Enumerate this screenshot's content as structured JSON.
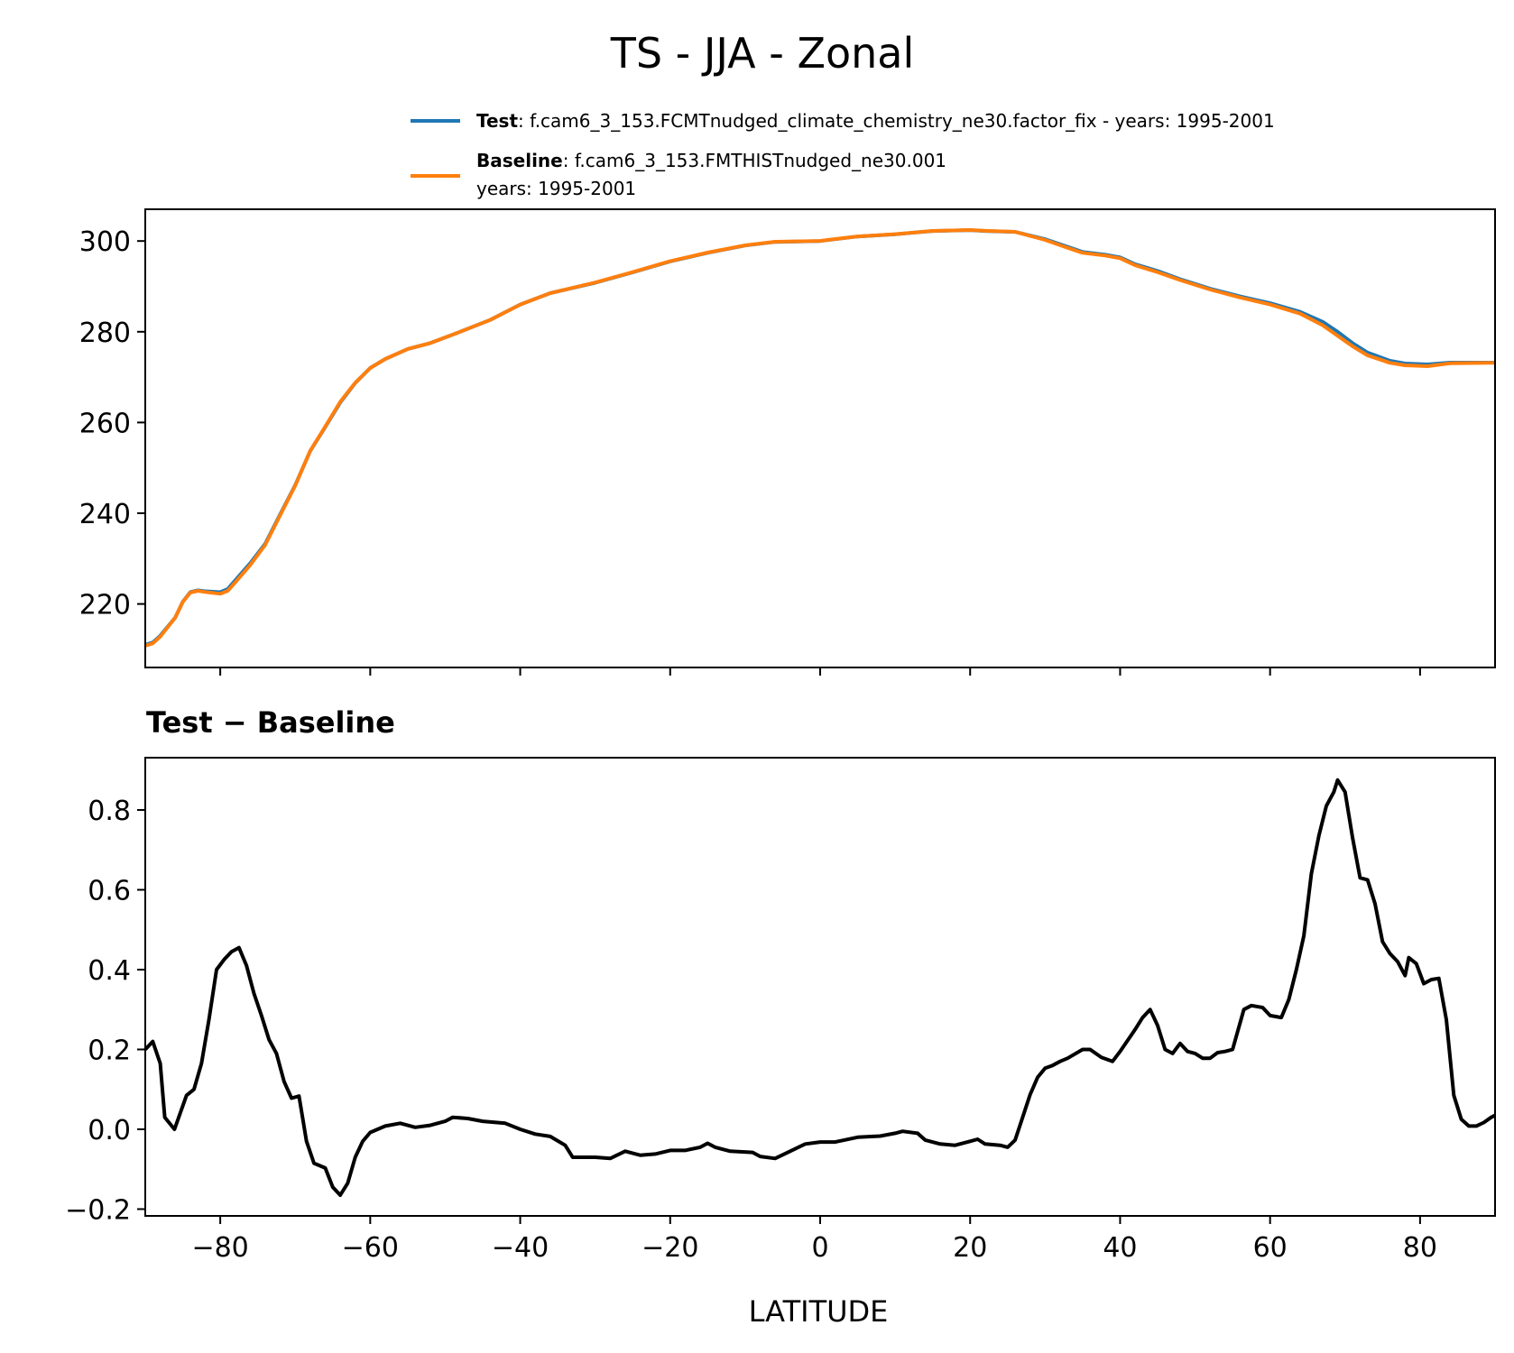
{
  "chart_data": [
    {
      "type": "line",
      "title": "TS - JJA - Zonal",
      "xlabel": "",
      "ylabel": "",
      "xlim": [
        -90,
        90
      ],
      "ylim": [
        206,
        307
      ],
      "yticks": [
        220,
        240,
        260,
        280,
        300
      ],
      "xticks": [
        -80,
        -60,
        -40,
        -20,
        0,
        20,
        40,
        60,
        80
      ],
      "grid": false,
      "legend": {
        "placement": "top-right, above axes",
        "entries": [
          {
            "label_bold": "Test",
            "label_rest": ": f.cam6_3_153.FCMTnudged_climate_chemistry_ne30.factor_fix - years: 1995-2001",
            "color": "#1f77b4"
          },
          {
            "label_bold": "Baseline",
            "label_rest": ": f.cam6_3_153.FMTHISTnudged_ne30.001",
            "label_line2": "years: 1995-2001",
            "color": "#ff7f0e"
          }
        ]
      },
      "x": [
        -90,
        -89,
        -88,
        -86,
        -85,
        -84,
        -83,
        -82,
        -80,
        -79,
        -78,
        -76,
        -74,
        -72,
        -70,
        -68,
        -66,
        -64,
        -62,
        -60,
        -58,
        -55,
        -52,
        -48,
        -44,
        -40,
        -36,
        -30,
        -25,
        -20,
        -15,
        -10,
        -6,
        0,
        2,
        5,
        10,
        15,
        20,
        22,
        26,
        30,
        33,
        35,
        38,
        40,
        42,
        45,
        48,
        52,
        56,
        60,
        64,
        67,
        69,
        71,
        73,
        76,
        78,
        81,
        84,
        90
      ],
      "series": [
        {
          "name": "Test",
          "color": "#1f77b4",
          "values": [
            211.0,
            211.5,
            213,
            217,
            220.5,
            222.6,
            223,
            222.8,
            222.6,
            223.3,
            225.2,
            229,
            233.3,
            239.8,
            246.2,
            253.7,
            259,
            264.4,
            268.7,
            272,
            274,
            276.2,
            277.5,
            280,
            282.6,
            286,
            288.5,
            290.8,
            293.1,
            295.5,
            297.4,
            299,
            299.8,
            300,
            300.4,
            301,
            301.5,
            302.2,
            302.4,
            302.2,
            302,
            300.4,
            298.7,
            297.6,
            297,
            296.4,
            294.9,
            293.4,
            291.6,
            289.5,
            287.8,
            286.3,
            284.4,
            282.2,
            280,
            277.5,
            275.4,
            273.6,
            273,
            272.8,
            273.2,
            273.2
          ]
        },
        {
          "name": "Baseline",
          "color": "#ff7f0e",
          "values": [
            210.8,
            211.3,
            212.8,
            217,
            220.45,
            222.5,
            222.9,
            222.65,
            222.25,
            222.9,
            224.75,
            228.6,
            233.05,
            239.6,
            246.1,
            253.75,
            259.1,
            264.55,
            268.75,
            272,
            274,
            276.2,
            277.5,
            280,
            282.6,
            286,
            288.5,
            290.85,
            293.15,
            295.55,
            297.45,
            299.05,
            299.85,
            300.03,
            300.43,
            301.02,
            301.51,
            302.23,
            302.43,
            302.24,
            302.02,
            300.25,
            298.5,
            297.4,
            296.8,
            296.2,
            294.65,
            293.15,
            291.4,
            289.3,
            287.55,
            286.0,
            284.0,
            281.45,
            279.1,
            276.8,
            274.8,
            273.15,
            272.6,
            272.4,
            273.05,
            273.17
          ]
        }
      ]
    },
    {
      "type": "line",
      "title": "Test − Baseline",
      "xlabel": "LATITUDE",
      "ylabel": "",
      "xlim": [
        -90,
        90
      ],
      "ylim": [
        -0.217,
        0.931
      ],
      "yticks": [
        -0.2,
        0.0,
        0.2,
        0.4,
        0.6,
        0.8
      ],
      "ytick_labels": [
        "−0.2",
        "0.0",
        "0.2",
        "0.4",
        "0.6",
        "0.8"
      ],
      "xticks": [
        -80,
        -60,
        -40,
        -20,
        0,
        20,
        40,
        60,
        80
      ],
      "xtick_labels": [
        "−80",
        "−60",
        "−40",
        "−20",
        "0",
        "20",
        "40",
        "60",
        "80"
      ],
      "grid": false,
      "series": [
        {
          "color": "#000000",
          "x": [
            -90,
            -89,
            -88,
            -87.4,
            -86.1,
            -84.5,
            -83.5,
            -82.5,
            -81.5,
            -80.5,
            -79.5,
            -78.5,
            -77.5,
            -76.5,
            -75.5,
            -74.5,
            -73.5,
            -72.5,
            -71.5,
            -70.5,
            -69.5,
            -68.5,
            -67.5,
            -66,
            -65,
            -64,
            -63,
            -62,
            -61,
            -60,
            -58,
            -56,
            -54,
            -52,
            -50,
            -49,
            -47,
            -45,
            -42,
            -40,
            -38,
            -36,
            -34,
            -33,
            -30,
            -28,
            -26,
            -24,
            -22,
            -20,
            -18,
            -16,
            -15,
            -14,
            -12,
            -9,
            -8,
            -6,
            -4,
            -2,
            0,
            2,
            5,
            8,
            10,
            11,
            13,
            14,
            16,
            18,
            20,
            21,
            22,
            24,
            25,
            26,
            27,
            28,
            29,
            30,
            31,
            32,
            33,
            35,
            36,
            37.5,
            39,
            40,
            42,
            43,
            44,
            45,
            46,
            47,
            48,
            49,
            50,
            51,
            52,
            53,
            54,
            55,
            56.5,
            57.5,
            59,
            60,
            61.5,
            62.5,
            63.5,
            64.5,
            65.5,
            66.5,
            67.5,
            68.5,
            69,
            70,
            71,
            72,
            73,
            74,
            75,
            76,
            77,
            78,
            78.5,
            79.5,
            80.5,
            81.5,
            82.5,
            83.5,
            84.5,
            85.5,
            86.5,
            87.5,
            88.5,
            89.5,
            90
          ],
          "values": [
            0.2,
            0.22,
            0.165,
            0.03,
            0.0,
            0.085,
            0.1,
            0.165,
            0.275,
            0.4,
            0.425,
            0.445,
            0.455,
            0.41,
            0.34,
            0.285,
            0.225,
            0.19,
            0.12,
            0.078,
            0.083,
            -0.03,
            -0.085,
            -0.097,
            -0.145,
            -0.165,
            -0.135,
            -0.07,
            -0.03,
            -0.008,
            0.008,
            0.015,
            0.005,
            0.01,
            0.02,
            0.03,
            0.027,
            0.02,
            0.015,
            0.0,
            -0.012,
            -0.018,
            -0.04,
            -0.07,
            -0.07,
            -0.073,
            -0.055,
            -0.065,
            -0.062,
            -0.053,
            -0.053,
            -0.045,
            -0.035,
            -0.045,
            -0.055,
            -0.058,
            -0.068,
            -0.073,
            -0.055,
            -0.037,
            -0.032,
            -0.032,
            -0.02,
            -0.017,
            -0.01,
            -0.005,
            -0.01,
            -0.027,
            -0.037,
            -0.04,
            -0.03,
            -0.025,
            -0.037,
            -0.04,
            -0.045,
            -0.027,
            0.03,
            0.087,
            0.13,
            0.153,
            0.16,
            0.17,
            0.178,
            0.2,
            0.2,
            0.18,
            0.17,
            0.195,
            0.25,
            0.28,
            0.3,
            0.26,
            0.2,
            0.19,
            0.215,
            0.195,
            0.19,
            0.178,
            0.178,
            0.192,
            0.195,
            0.2,
            0.3,
            0.31,
            0.305,
            0.285,
            0.28,
            0.325,
            0.4,
            0.485,
            0.64,
            0.735,
            0.81,
            0.845,
            0.875,
            0.845,
            0.73,
            0.63,
            0.625,
            0.565,
            0.47,
            0.44,
            0.42,
            0.385,
            0.43,
            0.415,
            0.365,
            0.375,
            0.378,
            0.275,
            0.085,
            0.025,
            0.008,
            0.008,
            0.017,
            0.03,
            0.035
          ]
        }
      ]
    }
  ]
}
